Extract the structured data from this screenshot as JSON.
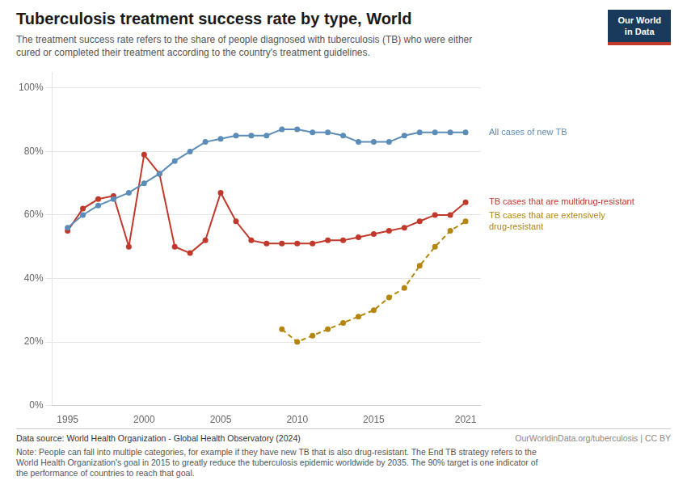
{
  "chart_data": {
    "type": "line",
    "title": "Tuberculosis treatment success rate by type, World",
    "subtitle": "The treatment success rate refers to the share of people diagnosed with tuberculosis (TB) who were either\ncured or completed their treatment according to the country's treatment guidelines.",
    "annotations": [
      "Data source: World Health Organization - Global Health Observatory (2024)",
      "OurWorldinData.org/tuberculosis | CC BY",
      "Note: People can fall into multiple categories, for example if they have new TB that is also drug-resistant. The End TB strategy refers to the\nWorld Health Organization's goal in 2015 to greatly reduce the tuberculosis epidemic worldwide by 2035. The 90% target is one indicator of\nthe performance of countries to reach that goal.",
      "Our World\nin Data"
    ],
    "x": [
      1995,
      1996,
      1997,
      1998,
      1999,
      2000,
      2001,
      2002,
      2003,
      2004,
      2005,
      2006,
      2007,
      2008,
      2009,
      2010,
      2011,
      2012,
      2013,
      2014,
      2015,
      2016,
      2017,
      2018,
      2019,
      2020,
      2021
    ],
    "series": [
      {
        "name": "All cases of new TB",
        "color": "#5B8DB8",
        "line_style": "solid",
        "marker": "o",
        "values": [
          56,
          60,
          63,
          65,
          67,
          70,
          73,
          77,
          80,
          83,
          84,
          85,
          85,
          85,
          87,
          87,
          86,
          86,
          85,
          83,
          83,
          83,
          85,
          86,
          86,
          86,
          86
        ]
      },
      {
        "name": "TB cases that are multidrug-resistant",
        "color": "#C0392B",
        "line_style": "solid",
        "marker": "o",
        "values": [
          55,
          62,
          65,
          66,
          50,
          79,
          73,
          50,
          48,
          52,
          67,
          58,
          52,
          51,
          51,
          51,
          51,
          52,
          52,
          53,
          54,
          55,
          56,
          58,
          60,
          60,
          64
        ]
      },
      {
        "name": "TB cases that are extensively\ndrug-resistant",
        "color": "#B5860D",
        "line_style": "dashed",
        "marker": "o",
        "values": [
          null,
          null,
          null,
          null,
          null,
          null,
          null,
          null,
          null,
          null,
          null,
          null,
          null,
          null,
          24,
          20,
          22,
          24,
          26,
          28,
          30,
          34,
          37,
          44,
          50,
          55,
          58
        ]
      }
    ],
    "xlim": [
      1994,
      2022
    ],
    "xticks": [
      1995,
      2000,
      2005,
      2010,
      2015,
      2021
    ],
    "ylim": [
      0,
      105
    ],
    "yticks": [
      {
        "value": 0,
        "label": "0%"
      },
      {
        "value": 20,
        "label": "20%"
      },
      {
        "value": 40,
        "label": "40%"
      },
      {
        "value": 60,
        "label": "60%"
      },
      {
        "value": 80,
        "label": "80%"
      },
      {
        "value": 100,
        "label": "100%"
      }
    ],
    "grid": "y"
  }
}
